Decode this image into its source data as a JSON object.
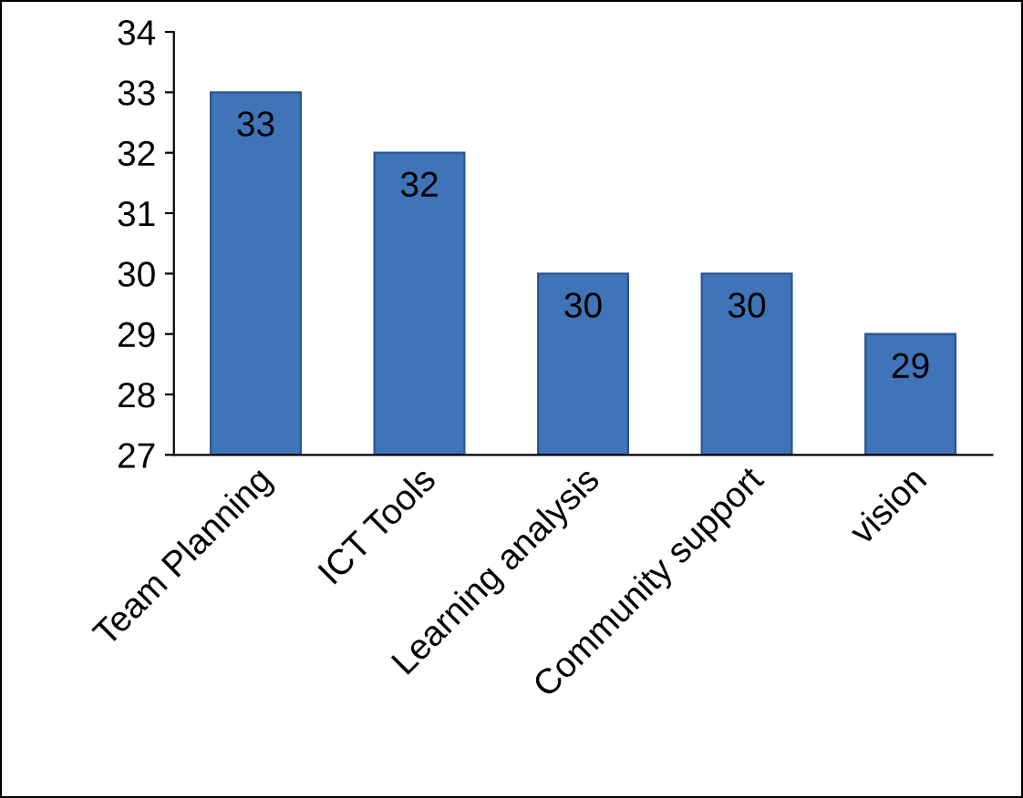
{
  "chart_data": {
    "type": "bar",
    "categories": [
      "Team Planning",
      "ICT Tools",
      "Learning analysis",
      "Community support",
      "vision"
    ],
    "values": [
      33,
      32,
      30,
      30,
      29
    ],
    "color": "#3f74b8",
    "ylim": [
      27,
      34
    ],
    "yticks": [
      27,
      28,
      29,
      30,
      31,
      32,
      33,
      34
    ],
    "data_labels": true,
    "grid": false,
    "legend": false
  }
}
